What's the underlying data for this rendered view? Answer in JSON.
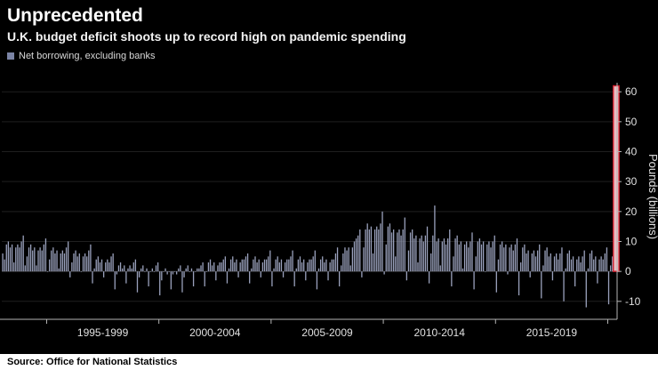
{
  "header": {
    "title": "Unprecedented",
    "subtitle": "U.K. budget deficit shoots up to record high on pandemic spending"
  },
  "legend": {
    "label": "Net borrowing, excluding banks",
    "swatch_color": "#7b84a5"
  },
  "source": {
    "text": "Source: Office for National Statistics"
  },
  "chart_data": {
    "type": "bar",
    "title": "Unprecedented",
    "subtitle": "U.K. budget deficit shoots up to record high on pandemic spending",
    "series_name": "Net borrowing, excluding banks",
    "xlabel": "",
    "ylabel": "Pounds (billions)",
    "ylim": [
      -16,
      66
    ],
    "yticks": [
      -10,
      0,
      10,
      20,
      30,
      40,
      50,
      60
    ],
    "frequency": "monthly",
    "start_year": 1993,
    "bar_color": "#9aa1bc",
    "grid": "faint-horizontal",
    "legend_position": "top-left",
    "x_groups": [
      {
        "label": "1995-1999",
        "start": 24,
        "end": 83
      },
      {
        "label": "2000-2004",
        "start": 84,
        "end": 143
      },
      {
        "label": "2005-2009",
        "start": 144,
        "end": 203
      },
      {
        "label": "2010-2014",
        "start": 204,
        "end": 263
      },
      {
        "label": "2015-2019",
        "start": 264,
        "end": 323
      }
    ],
    "x_tick_indices": [
      24,
      84,
      144,
      204,
      264,
      324
    ],
    "highlight": {
      "index": 328,
      "value": 62,
      "color": "#e8bcc1",
      "border": "#d0202e"
    },
    "values": [
      6,
      4,
      9,
      10,
      8,
      9,
      3,
      8,
      9,
      8,
      10,
      12,
      2,
      5,
      8,
      9,
      7,
      8,
      2,
      7,
      8,
      7,
      9,
      11,
      0,
      4,
      7,
      8,
      6,
      7,
      1,
      6,
      7,
      6,
      8,
      10,
      -2,
      3,
      6,
      7,
      5,
      6,
      0,
      5,
      6,
      5,
      7,
      9,
      -4,
      1,
      4,
      5,
      3,
      4,
      -2,
      3,
      4,
      3,
      5,
      6,
      -6,
      -1,
      2,
      3,
      1,
      2,
      -4,
      1,
      2,
      1,
      3,
      4,
      -7,
      -2,
      1,
      2,
      0,
      1,
      -5,
      0,
      1,
      0,
      2,
      3,
      -8,
      -3,
      0,
      1,
      -1,
      0,
      -6,
      -1,
      0,
      -1,
      1,
      2,
      -7,
      -2,
      1,
      2,
      0,
      1,
      -5,
      0,
      1,
      1,
      2,
      3,
      -5,
      0,
      3,
      4,
      2,
      3,
      -3,
      2,
      3,
      3,
      4,
      5,
      -4,
      1,
      4,
      5,
      3,
      4,
      -2,
      3,
      4,
      4,
      5,
      6,
      -4,
      1,
      4,
      5,
      3,
      4,
      -2,
      3,
      4,
      4,
      5,
      7,
      -5,
      1,
      4,
      5,
      3,
      4,
      -2,
      3,
      4,
      4,
      5,
      7,
      -5,
      1,
      4,
      5,
      3,
      4,
      -3,
      3,
      4,
      4,
      5,
      7,
      -6,
      1,
      4,
      5,
      3,
      4,
      -3,
      3,
      4,
      4,
      6,
      8,
      -5,
      2,
      6,
      8,
      7,
      8,
      2,
      8,
      10,
      11,
      12,
      14,
      -2,
      8,
      14,
      16,
      14,
      15,
      6,
      14,
      15,
      14,
      16,
      20,
      -1,
      9,
      15,
      16,
      13,
      14,
      5,
      13,
      14,
      12,
      14,
      18,
      -3,
      7,
      13,
      14,
      11,
      12,
      3,
      11,
      12,
      10,
      12,
      15,
      -4,
      6,
      12,
      22,
      10,
      11,
      2,
      10,
      11,
      9,
      11,
      14,
      -5,
      5,
      11,
      12,
      9,
      10,
      1,
      9,
      10,
      8,
      10,
      13,
      -6,
      5,
      10,
      11,
      9,
      10,
      0,
      9,
      10,
      8,
      10,
      12,
      -7,
      4,
      9,
      10,
      8,
      9,
      -1,
      8,
      9,
      7,
      9,
      11,
      -8,
      3,
      8,
      9,
      6,
      7,
      -2,
      6,
      7,
      5,
      7,
      9,
      -9,
      2,
      7,
      8,
      5,
      6,
      -3,
      5,
      6,
      4,
      6,
      8,
      -10,
      1,
      6,
      7,
      4,
      5,
      -5,
      4,
      5,
      3,
      5,
      7,
      -12,
      1,
      6,
      7,
      4,
      5,
      -4,
      4,
      5,
      4,
      6,
      8,
      -11,
      2,
      5,
      14,
      62
    ]
  }
}
